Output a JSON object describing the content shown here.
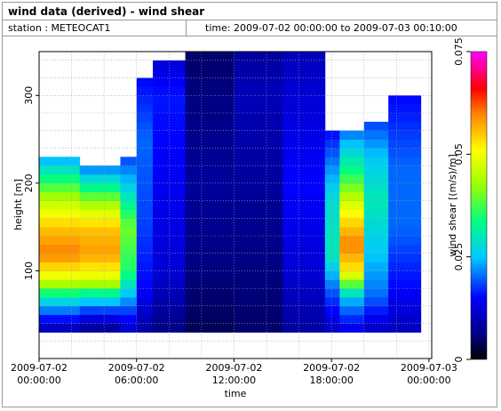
{
  "header": {
    "title": "wind data (derived) - wind shear",
    "station_label": "station : METEOCAT1",
    "time_label": "time: 2009-07-02 00:00:00 to 2009-07-03 00:10:00"
  },
  "chart_data": {
    "type": "heatmap",
    "title": "wind data (derived) - wind shear",
    "xlabel": "time",
    "ylabel": "height [m]",
    "colorbar_label": "wind shear [(m/s)/m]",
    "x_tick_labels": [
      [
        "2009-07-02",
        "00:00:00"
      ],
      [
        "2009-07-02",
        "06:00:00"
      ],
      [
        "2009-07-02",
        "12:00:00"
      ],
      [
        "2009-07-02",
        "18:00:00"
      ],
      [
        "2009-07-03",
        "00:00:00"
      ]
    ],
    "x_tick_hours": [
      0,
      6,
      12,
      18,
      24
    ],
    "xlim_hours": [
      0,
      24.17
    ],
    "y_ticks": [
      100,
      200,
      300
    ],
    "ylim": [
      0,
      350
    ],
    "colorbar_ticks": [
      "0",
      "0.025",
      "0.05",
      "0.075"
    ],
    "colorbar_tick_values": [
      0,
      0.025,
      0.05,
      0.075
    ],
    "colorbar_range": [
      0,
      0.075
    ],
    "time_step_hours": 0.1667,
    "height_step_m": 10,
    "height_min_m": 30,
    "data_columns": [
      {
        "t_start": 0.0,
        "t_end": 2.5,
        "top": 230,
        "profile": [
          [
            30,
            0.008
          ],
          [
            50,
            0.018
          ],
          [
            70,
            0.03
          ],
          [
            90,
            0.048
          ],
          [
            120,
            0.06
          ],
          [
            150,
            0.055
          ],
          [
            180,
            0.045
          ],
          [
            210,
            0.032
          ],
          [
            230,
            0.022
          ]
        ]
      },
      {
        "t_start": 2.5,
        "t_end": 5.0,
        "top": 220,
        "profile": [
          [
            30,
            0.006
          ],
          [
            50,
            0.015
          ],
          [
            70,
            0.028
          ],
          [
            90,
            0.048
          ],
          [
            120,
            0.058
          ],
          [
            150,
            0.055
          ],
          [
            180,
            0.042
          ],
          [
            200,
            0.03
          ],
          [
            220,
            0.02
          ]
        ]
      },
      {
        "t_start": 5.0,
        "t_end": 6.0,
        "top": 230,
        "profile": [
          [
            30,
            0.01
          ],
          [
            60,
            0.02
          ],
          [
            100,
            0.035
          ],
          [
            150,
            0.04
          ],
          [
            200,
            0.025
          ],
          [
            230,
            0.018
          ]
        ]
      },
      {
        "t_start": 6.0,
        "t_end": 7.0,
        "top": 320,
        "profile": [
          [
            30,
            0.008
          ],
          [
            80,
            0.015
          ],
          [
            150,
            0.018
          ],
          [
            250,
            0.02
          ],
          [
            320,
            0.015
          ]
        ]
      },
      {
        "t_start": 7.0,
        "t_end": 9.0,
        "top": 340,
        "profile": [
          [
            30,
            0.006
          ],
          [
            100,
            0.012
          ],
          [
            200,
            0.014
          ],
          [
            300,
            0.016
          ],
          [
            340,
            0.012
          ]
        ]
      },
      {
        "t_start": 9.0,
        "t_end": 12.0,
        "top": 350,
        "profile": [
          [
            30,
            0.004
          ],
          [
            100,
            0.006
          ],
          [
            200,
            0.008
          ],
          [
            300,
            0.006
          ],
          [
            350,
            0.005
          ]
        ]
      },
      {
        "t_start": 12.0,
        "t_end": 15.0,
        "top": 350,
        "profile": [
          [
            30,
            0.005
          ],
          [
            100,
            0.006
          ],
          [
            200,
            0.008
          ],
          [
            300,
            0.01
          ],
          [
            350,
            0.008
          ]
        ]
      },
      {
        "t_start": 15.0,
        "t_end": 17.6,
        "top": 350,
        "profile": [
          [
            30,
            0.008
          ],
          [
            100,
            0.012
          ],
          [
            200,
            0.015
          ],
          [
            300,
            0.012
          ],
          [
            350,
            0.01
          ]
        ]
      },
      {
        "t_start": 17.6,
        "t_end": 18.5,
        "top": 260,
        "profile": [
          [
            30,
            0.01
          ],
          [
            80,
            0.02
          ],
          [
            120,
            0.03
          ],
          [
            180,
            0.028
          ],
          [
            260,
            0.015
          ]
        ]
      },
      {
        "t_start": 18.5,
        "t_end": 20.0,
        "top": 260,
        "profile": [
          [
            30,
            0.012
          ],
          [
            70,
            0.025
          ],
          [
            100,
            0.052
          ],
          [
            130,
            0.06
          ],
          [
            170,
            0.05
          ],
          [
            210,
            0.035
          ],
          [
            260,
            0.02
          ]
        ]
      },
      {
        "t_start": 20.0,
        "t_end": 21.5,
        "top": 270,
        "profile": [
          [
            30,
            0.01
          ],
          [
            70,
            0.02
          ],
          [
            120,
            0.025
          ],
          [
            180,
            0.03
          ],
          [
            230,
            0.025
          ],
          [
            270,
            0.018
          ]
        ]
      },
      {
        "t_start": 21.5,
        "t_end": 23.5,
        "top": 300,
        "profile": [
          [
            30,
            0.01
          ],
          [
            80,
            0.015
          ],
          [
            150,
            0.02
          ],
          [
            220,
            0.02
          ],
          [
            300,
            0.015
          ]
        ]
      }
    ]
  }
}
